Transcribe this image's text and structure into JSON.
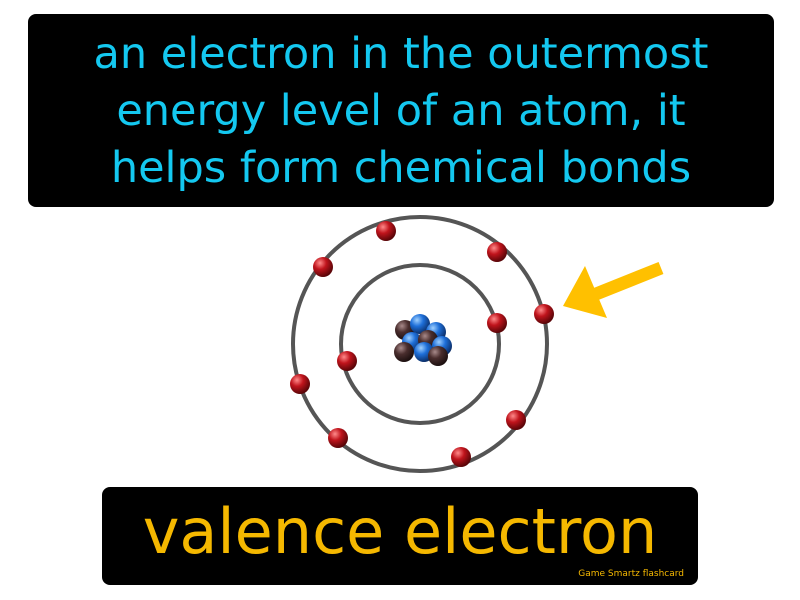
{
  "definition": {
    "lines": [
      "an electron in the outermost",
      "energy level of an atom, it",
      "helps form chemical bonds"
    ],
    "text_color": "#14c8f0",
    "background_color": "#000000"
  },
  "term": {
    "text": "valence electron",
    "text_color": "#f5b800"
  },
  "brand": {
    "text": "Game Smartz flashcard"
  },
  "diagram": {
    "inner_shell_electrons": 2,
    "outer_shell_electrons": 8,
    "orbit_color": "#555555",
    "electron_color": "#c0141c",
    "proton_color": "#1e6fd9",
    "neutron_color": "#4a2e2e",
    "arrow_color": "#ffc000",
    "arrow_target": "outer-shell-electron"
  }
}
